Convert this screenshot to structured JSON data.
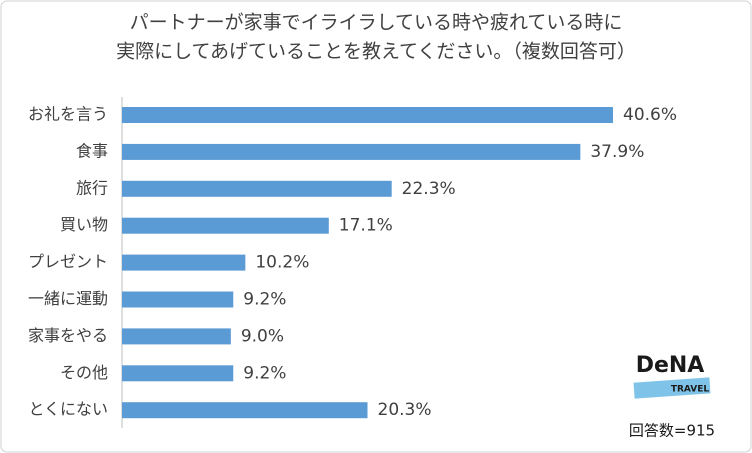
{
  "chart_data": {
    "type": "bar",
    "orientation": "horizontal",
    "title": [
      "パートナーが家事でイライラしている時や疲れている時に",
      "実際にしてあげていることを教えてください。（複数回答可）"
    ],
    "categories": [
      "お礼を言う",
      "食事",
      "旅行",
      "買い物",
      "プレゼント",
      "一緒に運動",
      "家事をやる",
      "その他",
      "とくにない"
    ],
    "values": [
      40.6,
      37.9,
      22.3,
      17.1,
      10.2,
      9.2,
      9.0,
      9.2,
      20.3
    ],
    "value_labels": [
      "40.6%",
      "37.9%",
      "22.3%",
      "17.1%",
      "10.2%",
      "9.2%",
      "9.0%",
      "9.2%",
      "20.3%"
    ],
    "color": "#5b9bd5",
    "note": "回答数=915"
  },
  "logo": {
    "name": "DeNA",
    "sub": "TRAVEL"
  }
}
